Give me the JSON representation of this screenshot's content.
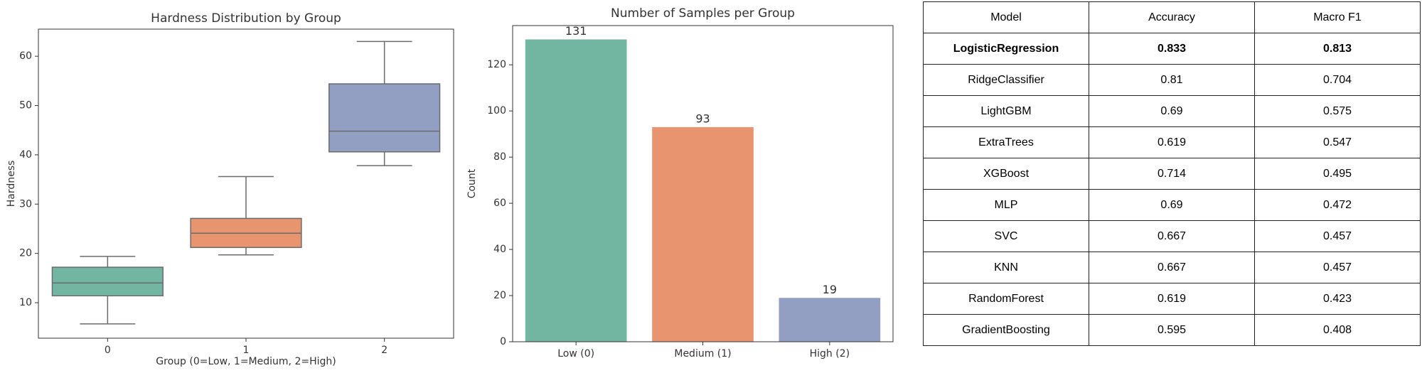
{
  "chart_data": [
    {
      "type": "box",
      "title": "Hardness Distribution by Group",
      "x_label": "Group (0=Low, 1=Medium, 2=High)",
      "y_label": "Hardness",
      "categories": [
        "0",
        "1",
        "2"
      ],
      "boxes": [
        {
          "min": 5.7,
          "q1": 11.4,
          "median": 14,
          "q3": 17.2,
          "max": 19.4
        },
        {
          "min": 19.7,
          "q1": 21.2,
          "median": 24.1,
          "q3": 27.1,
          "max": 35.6
        },
        {
          "min": 37.8,
          "q1": 40.6,
          "median": 44.8,
          "q3": 54.4,
          "max": 63
        }
      ],
      "colors": [
        "#72b6a1",
        "#e8956f",
        "#929fc3"
      ],
      "ylim": [
        2.8,
        65.5
      ],
      "yticks": [
        10,
        20,
        30,
        40,
        50,
        60
      ],
      "grid": false
    },
    {
      "type": "bar",
      "title": "Number of Samples per Group",
      "y_label": "Count",
      "categories": [
        "Low (0)",
        "Medium (1)",
        "High (2)"
      ],
      "values": [
        131,
        93,
        19
      ],
      "colors": [
        "#72b6a1",
        "#e8956f",
        "#929fc3"
      ],
      "ylim": [
        0,
        137
      ],
      "yticks": [
        0,
        20,
        40,
        60,
        80,
        100,
        120
      ],
      "grid": false
    }
  ],
  "table": {
    "header": [
      "Model",
      "Accuracy",
      "Macro F1"
    ],
    "rows": [
      [
        "LogisticRegression",
        0.833,
        0.813
      ],
      [
        "RidgeClassifier",
        0.81,
        0.704
      ],
      [
        "LightGBM",
        0.69,
        0.575
      ],
      [
        "ExtraTrees",
        0.619,
        0.547
      ],
      [
        "XGBoost",
        0.714,
        0.495
      ],
      [
        "MLP",
        0.69,
        0.472
      ],
      [
        "SVC",
        0.667,
        0.457
      ],
      [
        "KNN",
        0.667,
        0.457
      ],
      [
        "RandomForest",
        0.619,
        0.423
      ],
      [
        "GradientBoosting",
        0.595,
        0.408
      ]
    ]
  }
}
